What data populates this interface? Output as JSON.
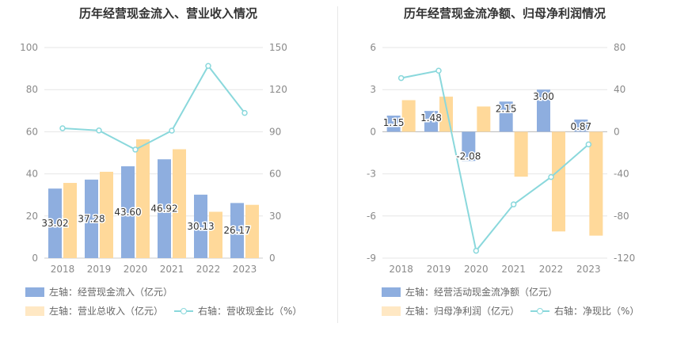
{
  "colors": {
    "bar_primary": "#8eaedf",
    "bar_secondary": "#ffd99a",
    "line": "#8ad8dc",
    "grid": "#e6e6e6"
  },
  "chart_data": [
    {
      "type": "bar",
      "title": "历年经营现金流入、营业收入情况",
      "categories": [
        "2018",
        "2019",
        "2020",
        "2021",
        "2022",
        "2023"
      ],
      "left_axis": {
        "ylim": [
          0,
          100
        ],
        "ticks": [
          0,
          20,
          40,
          60,
          80,
          100
        ]
      },
      "right_axis": {
        "ylim": [
          0,
          150
        ],
        "ticks": [
          0,
          30,
          60,
          90,
          120,
          150
        ]
      },
      "series": [
        {
          "name": "左轴：经营现金流入（亿元）",
          "axis": "left",
          "kind": "bar",
          "values": [
            33.02,
            37.28,
            43.6,
            46.92,
            30.13,
            26.17
          ],
          "labels": [
            "33.02",
            "37.28",
            "43.60",
            "46.92",
            "30.13",
            "26.17"
          ]
        },
        {
          "name": "左轴：营业总收入（亿元）",
          "axis": "left",
          "kind": "bar",
          "values": [
            35.7,
            41.0,
            56.4,
            51.7,
            22.0,
            25.3
          ]
        },
        {
          "name": "右轴：营收现金比（%）",
          "axis": "right",
          "kind": "line",
          "values": [
            92.5,
            90.9,
            77.3,
            90.8,
            136.9,
            103.4
          ]
        }
      ]
    },
    {
      "type": "bar",
      "title": "历年经营现金流净额、归母净利润情况",
      "categories": [
        "2018",
        "2019",
        "2020",
        "2021",
        "2022",
        "2023"
      ],
      "left_axis": {
        "ylim": [
          -9,
          6
        ],
        "ticks": [
          -9,
          -6,
          -3,
          0,
          3,
          6
        ]
      },
      "right_axis": {
        "ylim": [
          -120,
          80
        ],
        "ticks": [
          -120,
          -80,
          -40,
          0,
          40,
          80
        ]
      },
      "series": [
        {
          "name": "左轴：经营活动现金流净额（亿元）",
          "axis": "left",
          "kind": "bar",
          "values": [
            1.15,
            1.48,
            -2.08,
            2.15,
            3.0,
            0.87
          ],
          "labels": [
            "1.15",
            "1.48",
            "-2.08",
            "2.15",
            "3.00",
            "0.87"
          ]
        },
        {
          "name": "左轴：归母净利润（亿元）",
          "axis": "left",
          "kind": "bar",
          "values": [
            2.25,
            2.5,
            1.8,
            -3.2,
            -7.1,
            -7.4
          ]
        },
        {
          "name": "右轴：净现比（%）",
          "axis": "right",
          "kind": "line",
          "values": [
            51,
            58,
            -113,
            -69,
            -43,
            -12
          ]
        }
      ]
    }
  ]
}
